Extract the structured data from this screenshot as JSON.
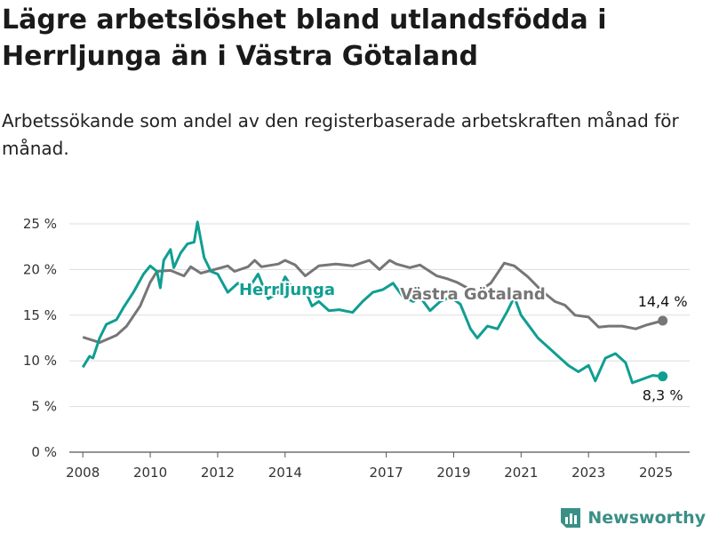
{
  "title": "Lägre arbetslöshet bland utlandsfödda i Herrljunga än i Västra Götaland",
  "subtitle": "Arbetssökande som andel av den registerbaserade arbetskraften månad för månad.",
  "brand": "Newsworthy",
  "colors": {
    "herrljunga": "#109e91",
    "vastra_gotaland": "#767676",
    "grid": "#dddddd"
  },
  "chart_data": {
    "type": "line",
    "x_unit": "year",
    "xlim": [
      2007.6,
      2026.0
    ],
    "ylim": [
      0,
      25
    ],
    "y_ticks": [
      0,
      5,
      10,
      15,
      20,
      25
    ],
    "y_tick_labels": [
      "0 %",
      "5 %",
      "10 %",
      "15 %",
      "20 %",
      "25 %"
    ],
    "x_ticks": [
      2008,
      2010,
      2012,
      2014,
      2017,
      2019,
      2021,
      2023,
      2025
    ],
    "x_tick_labels": [
      "2008",
      "2010",
      "2012",
      "2014",
      "2017",
      "2019",
      "2021",
      "2023",
      "2025"
    ],
    "grid": true,
    "series": [
      {
        "name": "Västra Götaland",
        "color_key": "vastra_gotaland",
        "end_label": "14,4 %",
        "points": [
          [
            2008.0,
            12.6
          ],
          [
            2008.5,
            12.0
          ],
          [
            2009.0,
            12.8
          ],
          [
            2009.3,
            13.8
          ],
          [
            2009.7,
            16.0
          ],
          [
            2010.0,
            18.6
          ],
          [
            2010.2,
            19.8
          ],
          [
            2010.6,
            19.9
          ],
          [
            2011.0,
            19.3
          ],
          [
            2011.2,
            20.3
          ],
          [
            2011.5,
            19.6
          ],
          [
            2012.0,
            20.1
          ],
          [
            2012.3,
            20.4
          ],
          [
            2012.5,
            19.8
          ],
          [
            2012.9,
            20.3
          ],
          [
            2013.1,
            21.0
          ],
          [
            2013.3,
            20.3
          ],
          [
            2013.8,
            20.6
          ],
          [
            2014.0,
            21.0
          ],
          [
            2014.3,
            20.5
          ],
          [
            2014.6,
            19.3
          ],
          [
            2015.0,
            20.4
          ],
          [
            2015.5,
            20.6
          ],
          [
            2016.0,
            20.4
          ],
          [
            2016.5,
            21.0
          ],
          [
            2016.8,
            20.0
          ],
          [
            2017.1,
            21.0
          ],
          [
            2017.3,
            20.6
          ],
          [
            2017.7,
            20.2
          ],
          [
            2018.0,
            20.5
          ],
          [
            2018.5,
            19.3
          ],
          [
            2018.8,
            19.0
          ],
          [
            2019.1,
            18.6
          ],
          [
            2019.4,
            18.0
          ],
          [
            2019.7,
            17.5
          ],
          [
            2020.1,
            18.5
          ],
          [
            2020.5,
            20.7
          ],
          [
            2020.8,
            20.4
          ],
          [
            2021.2,
            19.2
          ],
          [
            2021.6,
            17.7
          ],
          [
            2022.0,
            16.5
          ],
          [
            2022.3,
            16.1
          ],
          [
            2022.6,
            15.0
          ],
          [
            2023.0,
            14.8
          ],
          [
            2023.3,
            13.7
          ],
          [
            2023.6,
            13.8
          ],
          [
            2024.0,
            13.8
          ],
          [
            2024.4,
            13.5
          ],
          [
            2024.7,
            13.9
          ],
          [
            2025.0,
            14.2
          ],
          [
            2025.2,
            14.4
          ]
        ]
      },
      {
        "name": "Herrljunga",
        "color_key": "herrljunga",
        "end_label": "8,3 %",
        "points": [
          [
            2008.0,
            9.3
          ],
          [
            2008.2,
            10.5
          ],
          [
            2008.3,
            10.3
          ],
          [
            2008.5,
            12.5
          ],
          [
            2008.7,
            14.0
          ],
          [
            2009.0,
            14.5
          ],
          [
            2009.2,
            15.8
          ],
          [
            2009.5,
            17.5
          ],
          [
            2009.8,
            19.5
          ],
          [
            2010.0,
            20.4
          ],
          [
            2010.2,
            19.8
          ],
          [
            2010.3,
            18.0
          ],
          [
            2010.4,
            21.0
          ],
          [
            2010.6,
            22.2
          ],
          [
            2010.7,
            20.2
          ],
          [
            2010.9,
            21.8
          ],
          [
            2011.1,
            22.8
          ],
          [
            2011.3,
            23.0
          ],
          [
            2011.4,
            25.2
          ],
          [
            2011.6,
            21.3
          ],
          [
            2011.8,
            19.8
          ],
          [
            2012.0,
            19.5
          ],
          [
            2012.3,
            17.5
          ],
          [
            2012.6,
            18.5
          ],
          [
            2012.9,
            17.8
          ],
          [
            2013.2,
            19.5
          ],
          [
            2013.5,
            16.8
          ],
          [
            2013.8,
            17.5
          ],
          [
            2014.0,
            19.2
          ],
          [
            2014.3,
            17.5
          ],
          [
            2014.6,
            17.7
          ],
          [
            2014.8,
            16.0
          ],
          [
            2015.0,
            16.5
          ],
          [
            2015.3,
            15.5
          ],
          [
            2015.6,
            15.6
          ],
          [
            2016.0,
            15.3
          ],
          [
            2016.3,
            16.5
          ],
          [
            2016.6,
            17.5
          ],
          [
            2016.9,
            17.8
          ],
          [
            2017.2,
            18.5
          ],
          [
            2017.5,
            17.0
          ],
          [
            2017.8,
            16.5
          ],
          [
            2018.0,
            17.0
          ],
          [
            2018.3,
            15.5
          ],
          [
            2018.6,
            16.5
          ],
          [
            2018.9,
            17.0
          ],
          [
            2019.2,
            16.2
          ],
          [
            2019.5,
            13.5
          ],
          [
            2019.7,
            12.5
          ],
          [
            2020.0,
            13.8
          ],
          [
            2020.3,
            13.5
          ],
          [
            2020.6,
            15.5
          ],
          [
            2020.8,
            17.0
          ],
          [
            2021.0,
            15.0
          ],
          [
            2021.3,
            13.5
          ],
          [
            2021.5,
            12.5
          ],
          [
            2021.8,
            11.5
          ],
          [
            2022.1,
            10.5
          ],
          [
            2022.4,
            9.5
          ],
          [
            2022.7,
            8.8
          ],
          [
            2023.0,
            9.5
          ],
          [
            2023.2,
            7.8
          ],
          [
            2023.5,
            10.3
          ],
          [
            2023.8,
            10.8
          ],
          [
            2024.1,
            9.8
          ],
          [
            2024.3,
            7.6
          ],
          [
            2024.6,
            8.0
          ],
          [
            2024.9,
            8.4
          ],
          [
            2025.2,
            8.3
          ]
        ]
      }
    ]
  }
}
